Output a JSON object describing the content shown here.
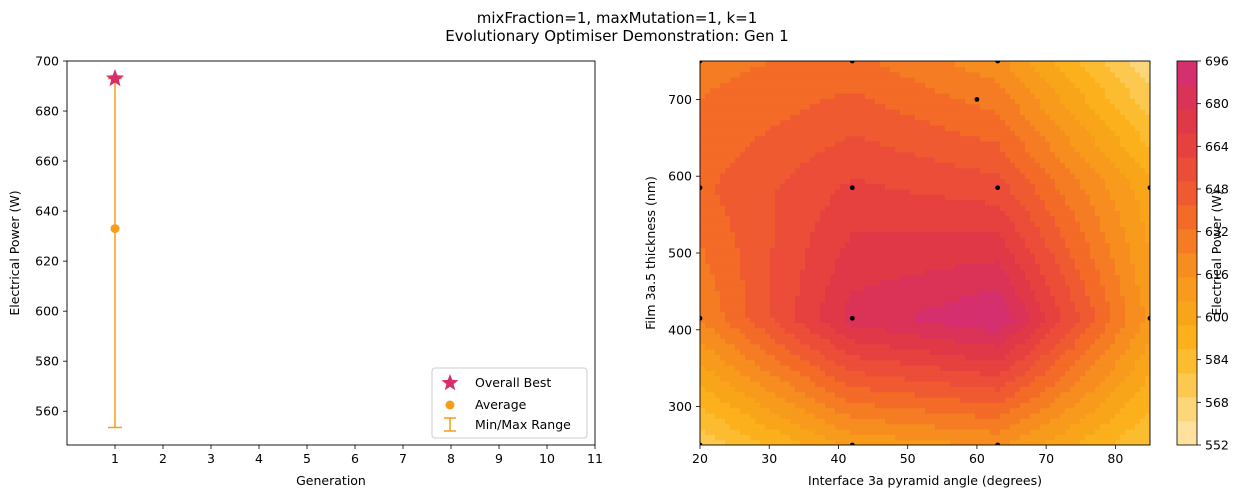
{
  "figure": {
    "title_line1": "mixFraction=1, maxMutation=1, k=1",
    "title_line2": "Evolutionary Optimiser Demonstration: Gen 1"
  },
  "chart_data": [
    {
      "type": "scatter",
      "xlabel": "Generation",
      "ylabel": "Electrical Power (W)",
      "xlim": [
        0,
        11
      ],
      "ylim": [
        546.5,
        700
      ],
      "xticks": [
        1,
        2,
        3,
        4,
        5,
        6,
        7,
        8,
        9,
        10,
        11
      ],
      "yticks": [
        560,
        580,
        600,
        620,
        640,
        660,
        680,
        700
      ],
      "grid": false,
      "legend_position": "lower-right",
      "series": [
        {
          "name": "Overall Best",
          "marker": "star",
          "color": "#d62f6e",
          "x": [
            1
          ],
          "y": [
            693
          ]
        },
        {
          "name": "Average",
          "marker": "circle",
          "color": "#f89c19",
          "x": [
            1
          ],
          "y": [
            633
          ]
        },
        {
          "name": "Min/Max Range",
          "marker": "errorbar",
          "color": "#f89c19",
          "x": [
            1
          ],
          "ymin": [
            553.5
          ],
          "ymax": [
            693
          ]
        }
      ]
    },
    {
      "type": "heatmap",
      "xlabel": "Interface 3a pyramid angle (degrees)",
      "ylabel": "Film 3a.5 thickness (nm)",
      "xlim": [
        20,
        85
      ],
      "ylim": [
        250,
        750
      ],
      "xticks": [
        20,
        30,
        40,
        50,
        60,
        70,
        80
      ],
      "yticks": [
        300,
        400,
        500,
        600,
        700
      ],
      "colorbar": {
        "label": "Electrical Power (W)",
        "ticks": [
          552,
          568,
          584,
          600,
          616,
          632,
          648,
          664,
          680,
          696
        ],
        "colors": [
          "#fde19c",
          "#fdd679",
          "#fdc84f",
          "#fcbc2f",
          "#fbb01c",
          "#f9a519",
          "#f89a1b",
          "#f78d1f",
          "#f57c23",
          "#f36b27",
          "#ef5a30",
          "#eb4d38",
          "#e6403f",
          "#e03847",
          "#db3358",
          "#d62f6e"
        ]
      },
      "grid_x": [
        20,
        42,
        63,
        85
      ],
      "grid_y": [
        250,
        415,
        585,
        750
      ],
      "values": [
        [
          572,
          608,
          616,
          578
        ],
        [
          624,
          682,
          696,
          612
        ],
        [
          640,
          662,
          655,
          600
        ],
        [
          630,
          636,
          618,
          562
        ]
      ],
      "sample_points": [
        {
          "x": 20,
          "y": 750
        },
        {
          "x": 42,
          "y": 750
        },
        {
          "x": 63,
          "y": 750
        },
        {
          "x": 60,
          "y": 700
        },
        {
          "x": 20,
          "y": 585
        },
        {
          "x": 42,
          "y": 585
        },
        {
          "x": 63,
          "y": 585
        },
        {
          "x": 85,
          "y": 585
        },
        {
          "x": 20,
          "y": 415
        },
        {
          "x": 42,
          "y": 415
        },
        {
          "x": 85,
          "y": 415
        },
        {
          "x": 20,
          "y": 250
        },
        {
          "x": 42,
          "y": 250
        },
        {
          "x": 63,
          "y": 250
        }
      ],
      "best_point": {
        "x": 63,
        "y": 415
      }
    }
  ]
}
